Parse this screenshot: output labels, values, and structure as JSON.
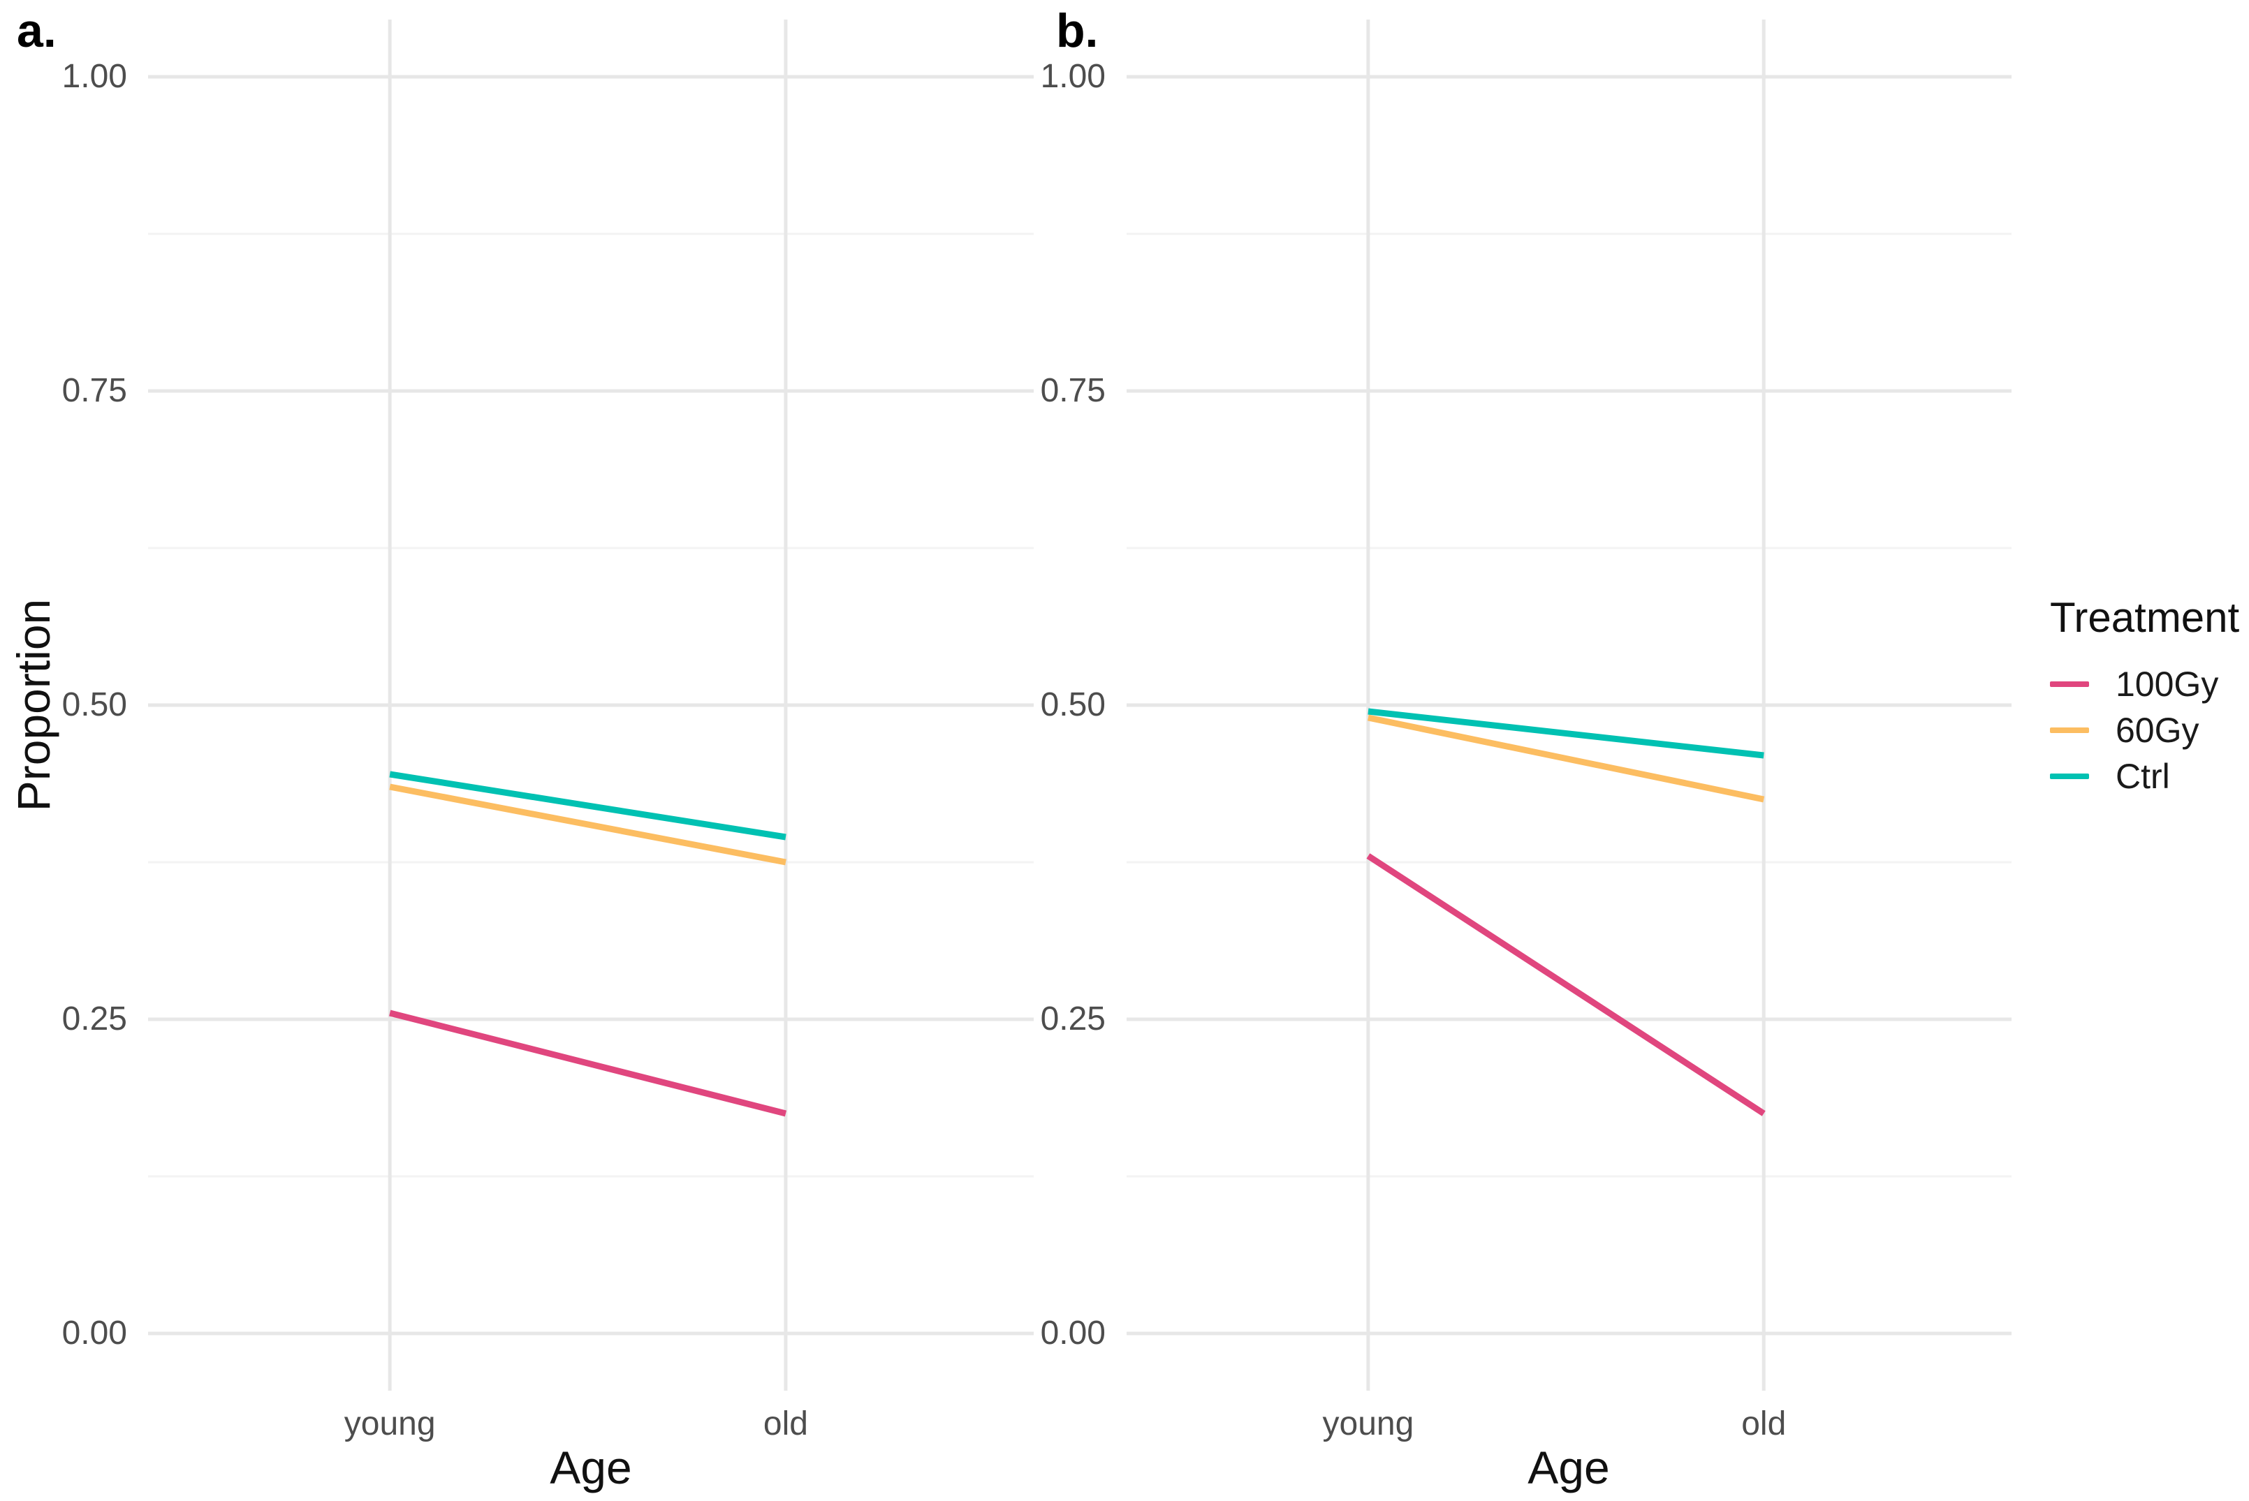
{
  "figure": {
    "panel_tags": [
      "a.",
      "b."
    ],
    "background": "#ffffff"
  },
  "axes": {
    "x_label": "Age",
    "y_label": "Proportion",
    "x_categories": [
      "young",
      "old"
    ],
    "y_tick_labels": [
      "1.00",
      "0.75",
      "0.50",
      "0.25",
      "0.00"
    ]
  },
  "legend": {
    "title": "Treatment",
    "items": [
      {
        "label": "100Gy",
        "color": "#E0467E"
      },
      {
        "label": "60Gy",
        "color": "#FCBD61"
      },
      {
        "label": "Ctrl",
        "color": "#00C1B2"
      }
    ]
  },
  "style_colors": {
    "grid_major": "#E7E7E7",
    "grid_minor": "#F3F3F3",
    "tick_text": "#4D4D4D",
    "series_100Gy": "#E0467E",
    "series_60Gy": "#FCBD61",
    "series_Ctrl": "#00C1B2"
  },
  "chart_data": [
    {
      "type": "line",
      "panel_tag": "a.",
      "title": "",
      "xlabel": "Age",
      "ylabel": "Proportion",
      "x": [
        "young",
        "old"
      ],
      "ylim": [
        0,
        1
      ],
      "grid": "on",
      "legend_position": "right-of-figure",
      "yticks": [
        {
          "v": 1.0,
          "label": "1.00"
        },
        {
          "v": 0.75,
          "label": "0.75"
        },
        {
          "v": 0.5,
          "label": "0.50"
        },
        {
          "v": 0.25,
          "label": "0.25"
        },
        {
          "v": 0.0,
          "label": "0.00"
        }
      ],
      "minor_ticks": [
        0.125,
        0.375,
        0.625,
        0.875
      ],
      "series": [
        {
          "name": "100Gy",
          "color": "#E0467E",
          "values": [
            0.255,
            0.175
          ]
        },
        {
          "name": "60Gy",
          "color": "#FCBD61",
          "values": [
            0.435,
            0.375
          ]
        },
        {
          "name": "Ctrl",
          "color": "#00C1B2",
          "values": [
            0.445,
            0.395
          ]
        }
      ]
    },
    {
      "type": "line",
      "panel_tag": "b.",
      "title": "",
      "xlabel": "Age",
      "ylabel": "",
      "x": [
        "young",
        "old"
      ],
      "ylim": [
        0,
        1
      ],
      "grid": "on",
      "legend_position": "right-of-figure",
      "yticks": [
        {
          "v": 1.0,
          "label": "1.00"
        },
        {
          "v": 0.75,
          "label": "0.75"
        },
        {
          "v": 0.5,
          "label": "0.50"
        },
        {
          "v": 0.25,
          "label": "0.25"
        },
        {
          "v": 0.0,
          "label": "0.00"
        }
      ],
      "minor_ticks": [
        0.125,
        0.375,
        0.625,
        0.875
      ],
      "series": [
        {
          "name": "100Gy",
          "color": "#E0467E",
          "values": [
            0.38,
            0.175
          ]
        },
        {
          "name": "60Gy",
          "color": "#FCBD61",
          "values": [
            0.49,
            0.425
          ]
        },
        {
          "name": "Ctrl",
          "color": "#00C1B2",
          "values": [
            0.495,
            0.46
          ]
        }
      ]
    }
  ]
}
